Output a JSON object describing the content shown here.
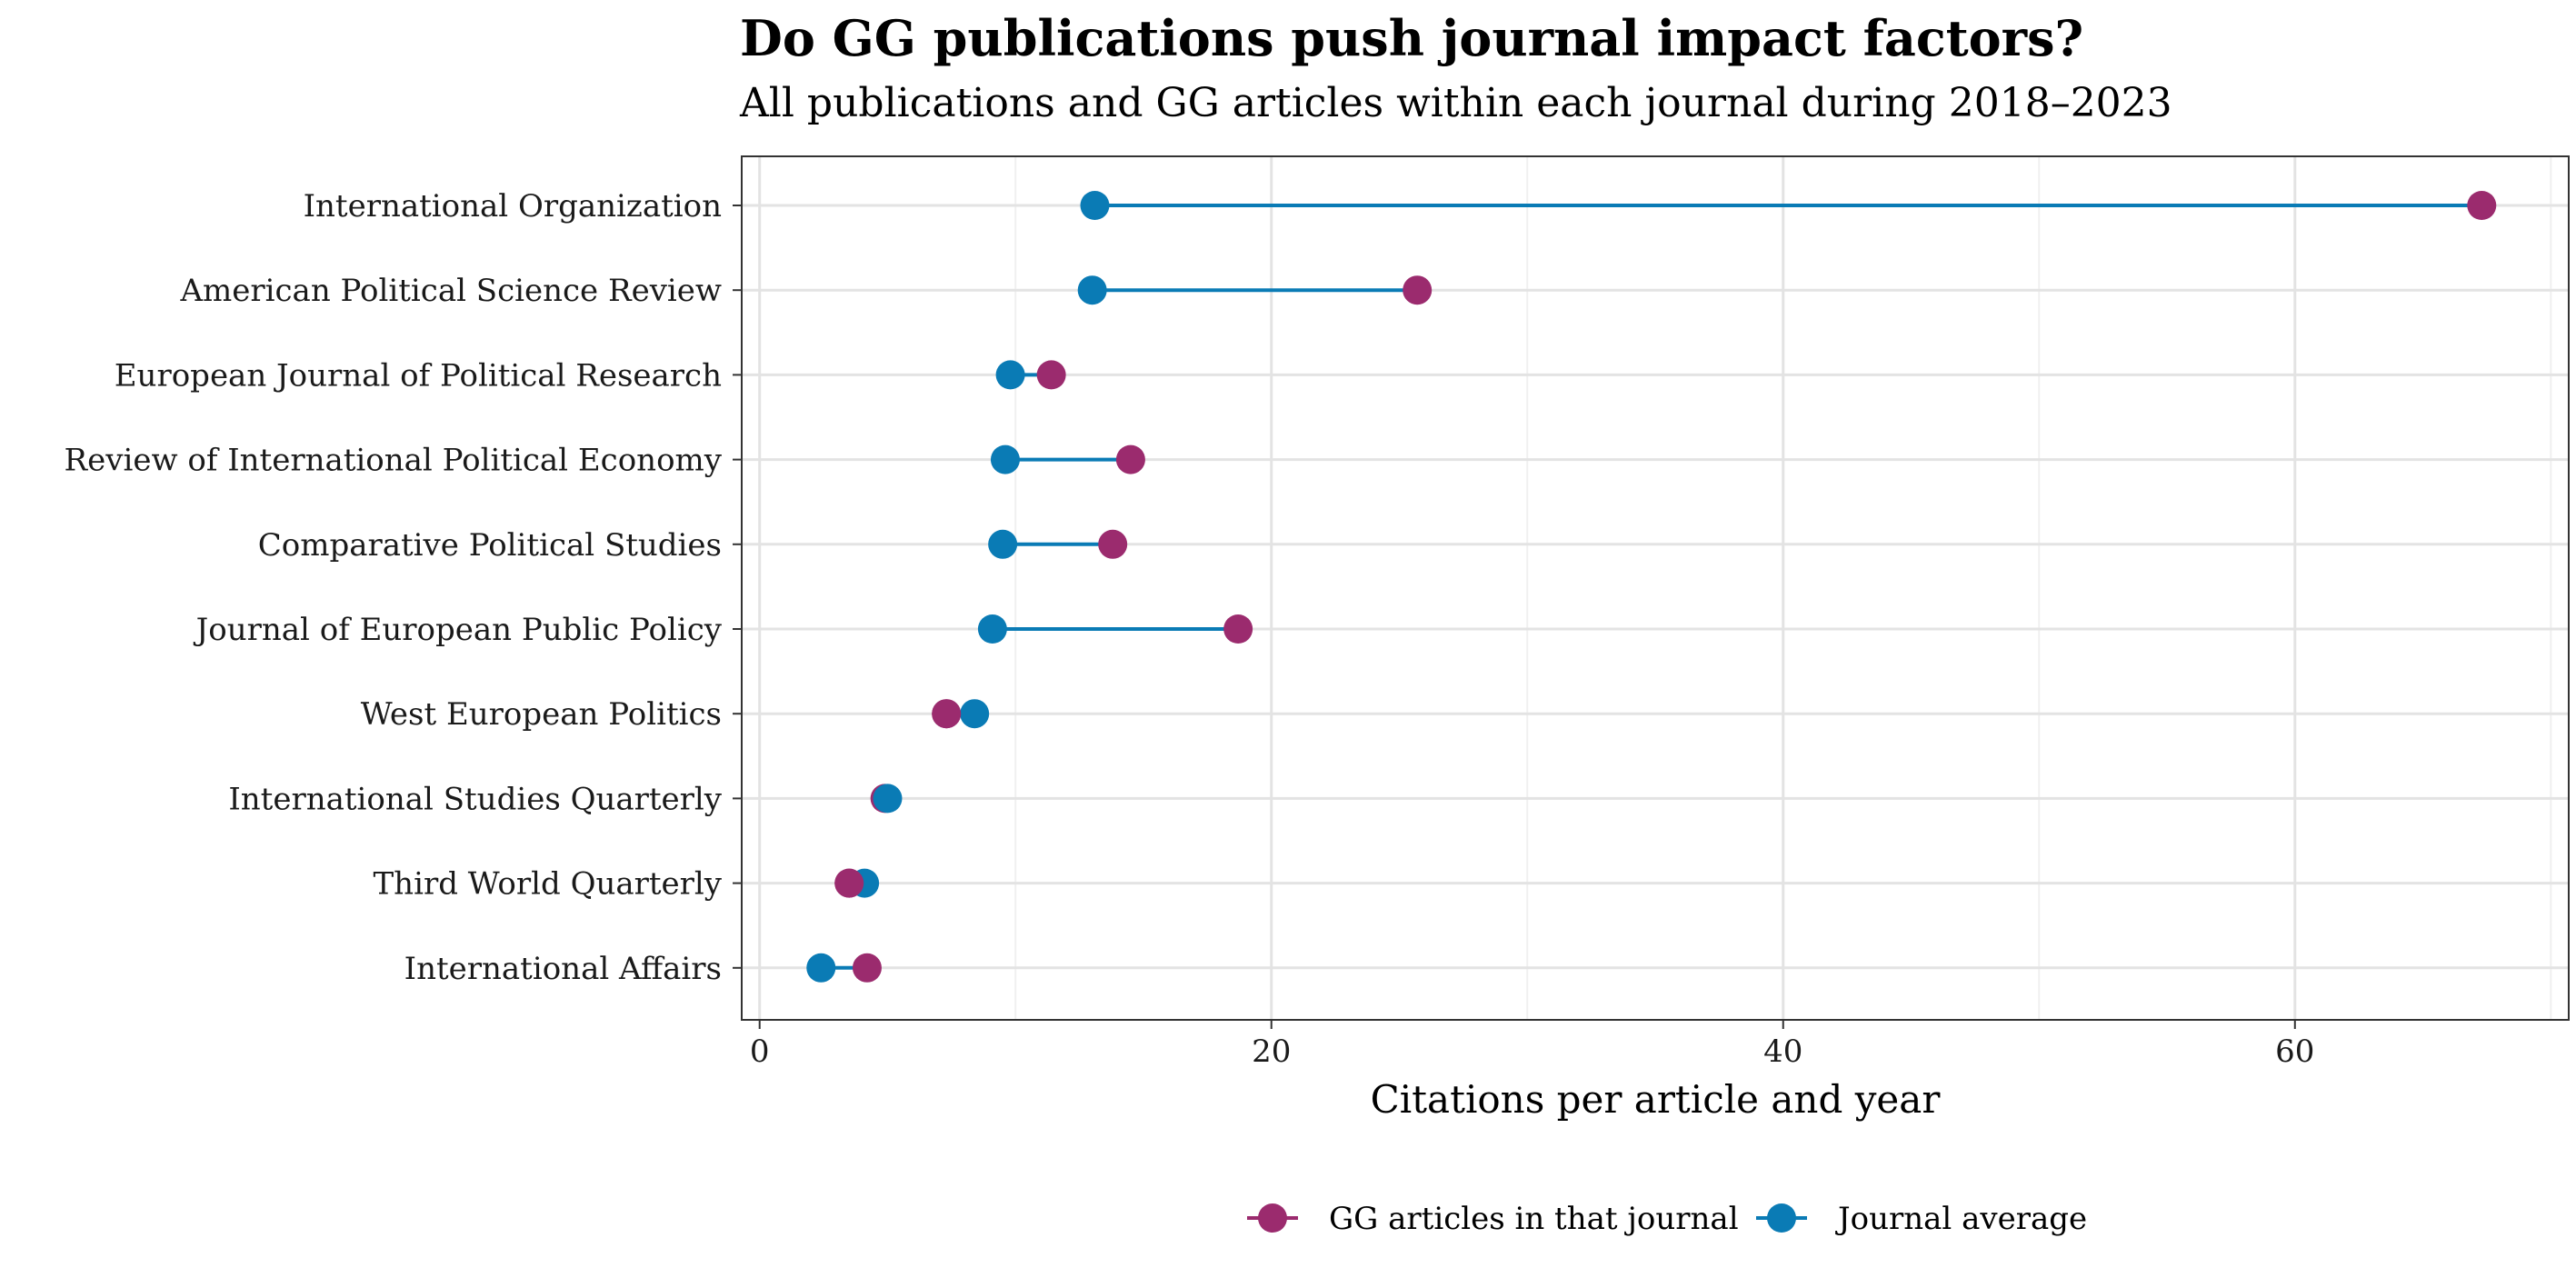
{
  "title": "Do GG publications push journal impact factors?",
  "subtitle": "All publications and GG articles within each journal during 2018–2023",
  "colors": {
    "gg": "#9b2b6e",
    "journal": "#0a7bb5",
    "grid_major": "#e3e3e3",
    "grid_minor": "#f0f0f0"
  },
  "chart_data": {
    "type": "dumbbell",
    "xlabel": "Citations per article and year",
    "ylabel": "",
    "xlim": [
      -0.7,
      70.7
    ],
    "xticks": [
      0,
      20,
      40,
      60
    ],
    "grid": true,
    "legend_position": "bottom",
    "categories": [
      "International Organization",
      "American Political Science Review",
      "European Journal of Political Research",
      "Review of International Political Economy",
      "Comparative Political Studies",
      "Journal of European Public Policy",
      "West European Politics",
      "International Studies Quarterly",
      "Third World Quarterly",
      "International Affairs"
    ],
    "series": [
      {
        "name": "GG articles in that journal",
        "values": [
          67.3,
          25.7,
          11.4,
          14.5,
          13.8,
          18.7,
          7.3,
          4.9,
          3.5,
          4.2
        ]
      },
      {
        "name": "Journal average",
        "values": [
          13.1,
          13.0,
          9.8,
          9.6,
          9.5,
          9.1,
          8.4,
          5.0,
          4.1,
          2.4
        ]
      }
    ]
  }
}
